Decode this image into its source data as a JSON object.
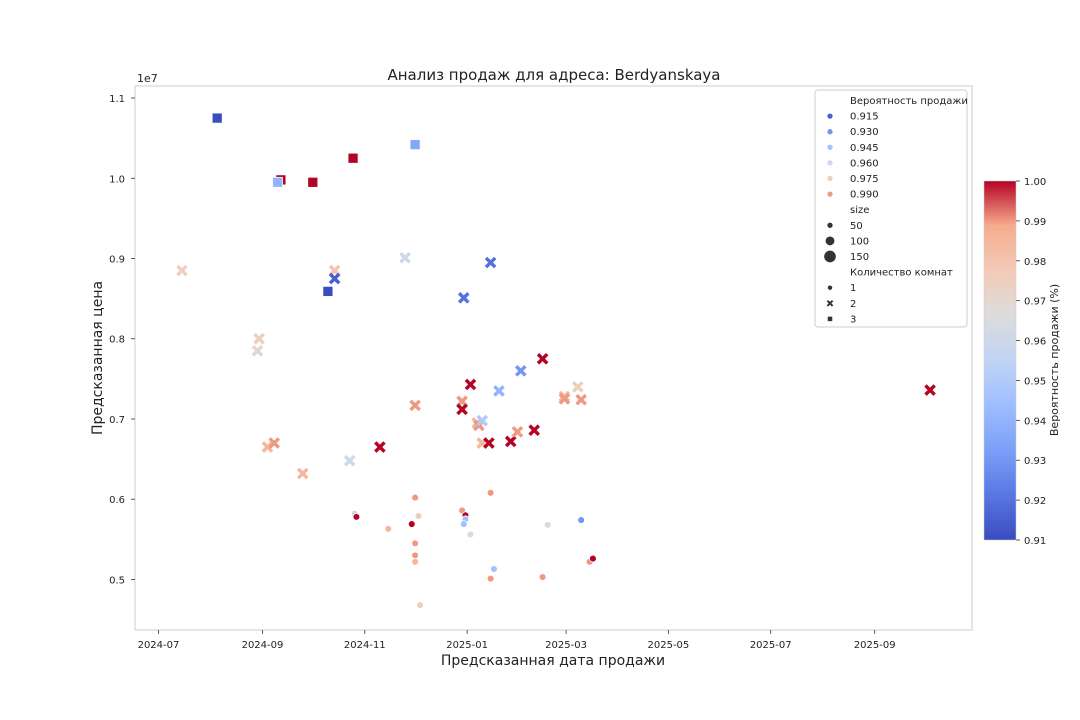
{
  "chart_data": {
    "type": "scatter",
    "title": "Анализ продаж для адреса: Berdyanskaya",
    "xlabel": "Предсказанная дата продажи",
    "ylabel": "Предсказанная цена",
    "y_offset_label": "1e7",
    "x_range": [
      "2024-06-17",
      "2025-10-29"
    ],
    "ylim": [
      4.37,
      11.15
    ],
    "x_ticks": [
      "2024-07",
      "2024-09",
      "2024-11",
      "2025-01",
      "2025-03",
      "2025-05",
      "2025-07",
      "2025-09"
    ],
    "y_ticks": [
      "0.5",
      "0.6",
      "0.7",
      "0.8",
      "0.9",
      "1.0",
      "1.1"
    ],
    "grid": false,
    "legend_position": "top-right",
    "legend": {
      "hue_title": "Вероятность продажи",
      "hue_entries": [
        "0.915",
        "0.930",
        "0.945",
        "0.960",
        "0.975",
        "0.990"
      ],
      "size_title": "size",
      "size_entries": [
        "50",
        "100",
        "150"
      ],
      "style_title": "Количество комнат",
      "style_entries": [
        "1",
        "2",
        "3"
      ]
    },
    "colorbar": {
      "label": "Вероятность продажи (%)",
      "min": 0.91,
      "max": 1.0,
      "ticks": [
        "0.91",
        "0.92",
        "0.93",
        "0.94",
        "0.95",
        "0.96",
        "0.97",
        "0.98",
        "0.99",
        "1.00"
      ]
    },
    "marker_legend": {
      "1": "circle",
      "2": "x",
      "3": "square"
    },
    "points": [
      {
        "date": "2024-08-05",
        "price": 10.75,
        "rooms": 3,
        "prob": 0.91
      },
      {
        "date": "2024-09-12",
        "price": 9.98,
        "rooms": 3,
        "prob": 1.0
      },
      {
        "date": "2024-09-10",
        "price": 9.95,
        "rooms": 3,
        "prob": 0.94
      },
      {
        "date": "2024-10-01",
        "price": 9.95,
        "rooms": 3,
        "prob": 1.0
      },
      {
        "date": "2024-10-25",
        "price": 10.25,
        "rooms": 3,
        "prob": 1.0
      },
      {
        "date": "2024-12-01",
        "price": 10.42,
        "rooms": 3,
        "prob": 0.935
      },
      {
        "date": "2024-10-10",
        "price": 8.59,
        "rooms": 3,
        "prob": 0.91
      },
      {
        "date": "2024-07-15",
        "price": 8.85,
        "rooms": 2,
        "prob": 0.975
      },
      {
        "date": "2024-10-14",
        "price": 8.85,
        "rooms": 2,
        "prob": 0.98
      },
      {
        "date": "2024-10-14",
        "price": 8.75,
        "rooms": 2,
        "prob": 0.915
      },
      {
        "date": "2024-11-25",
        "price": 9.01,
        "rooms": 2,
        "prob": 0.96
      },
      {
        "date": "2025-01-15",
        "price": 8.95,
        "rooms": 2,
        "prob": 0.92
      },
      {
        "date": "2024-12-30",
        "price": 8.51,
        "rooms": 2,
        "prob": 0.92
      },
      {
        "date": "2024-08-30",
        "price": 8.0,
        "rooms": 2,
        "prob": 0.975
      },
      {
        "date": "2024-08-29",
        "price": 7.85,
        "rooms": 2,
        "prob": 0.97
      },
      {
        "date": "2024-09-04",
        "price": 6.65,
        "rooms": 2,
        "prob": 0.985
      },
      {
        "date": "2024-09-08",
        "price": 6.7,
        "rooms": 2,
        "prob": 0.99
      },
      {
        "date": "2024-09-25",
        "price": 6.32,
        "rooms": 2,
        "prob": 0.985
      },
      {
        "date": "2024-10-23",
        "price": 6.48,
        "rooms": 2,
        "prob": 0.96
      },
      {
        "date": "2024-11-10",
        "price": 6.65,
        "rooms": 2,
        "prob": 1.0
      },
      {
        "date": "2024-12-01",
        "price": 7.17,
        "rooms": 2,
        "prob": 0.99
      },
      {
        "date": "2024-12-29",
        "price": 7.22,
        "rooms": 2,
        "prob": 0.99
      },
      {
        "date": "2024-12-29",
        "price": 7.12,
        "rooms": 2,
        "prob": 1.0
      },
      {
        "date": "2025-01-03",
        "price": 7.43,
        "rooms": 2,
        "prob": 1.0
      },
      {
        "date": "2025-01-07",
        "price": 6.95,
        "rooms": 2,
        "prob": 0.985
      },
      {
        "date": "2025-01-08",
        "price": 6.92,
        "rooms": 2,
        "prob": 0.99
      },
      {
        "date": "2025-01-10",
        "price": 6.98,
        "rooms": 2,
        "prob": 0.95
      },
      {
        "date": "2025-01-10",
        "price": 6.7,
        "rooms": 2,
        "prob": 0.985
      },
      {
        "date": "2025-01-14",
        "price": 6.7,
        "rooms": 2,
        "prob": 1.0
      },
      {
        "date": "2025-01-20",
        "price": 7.35,
        "rooms": 2,
        "prob": 0.94
      },
      {
        "date": "2025-01-27",
        "price": 6.72,
        "rooms": 2,
        "prob": 1.0
      },
      {
        "date": "2025-01-31",
        "price": 6.84,
        "rooms": 2,
        "prob": 0.99
      },
      {
        "date": "2025-02-02",
        "price": 7.6,
        "rooms": 2,
        "prob": 0.93
      },
      {
        "date": "2025-02-10",
        "price": 6.86,
        "rooms": 2,
        "prob": 1.0
      },
      {
        "date": "2025-02-15",
        "price": 7.75,
        "rooms": 2,
        "prob": 1.0
      },
      {
        "date": "2025-02-28",
        "price": 7.28,
        "rooms": 2,
        "prob": 0.985
      },
      {
        "date": "2025-02-28",
        "price": 7.25,
        "rooms": 2,
        "prob": 0.99
      },
      {
        "date": "2025-03-08",
        "price": 7.4,
        "rooms": 2,
        "prob": 0.975
      },
      {
        "date": "2025-03-10",
        "price": 7.24,
        "rooms": 2,
        "prob": 0.99
      },
      {
        "date": "2025-10-04",
        "price": 7.36,
        "rooms": 2,
        "prob": 1.0
      },
      {
        "date": "2024-10-26",
        "price": 5.82,
        "rooms": 1,
        "prob": 0.96
      },
      {
        "date": "2024-10-27",
        "price": 5.78,
        "rooms": 1,
        "prob": 1.0
      },
      {
        "date": "2024-11-15",
        "price": 5.63,
        "rooms": 1,
        "prob": 0.985
      },
      {
        "date": "2024-11-29",
        "price": 5.69,
        "rooms": 1,
        "prob": 1.0
      },
      {
        "date": "2024-12-01",
        "price": 6.02,
        "rooms": 1,
        "prob": 0.99
      },
      {
        "date": "2024-12-03",
        "price": 5.79,
        "rooms": 1,
        "prob": 0.975
      },
      {
        "date": "2024-12-01",
        "price": 5.45,
        "rooms": 1,
        "prob": 0.99
      },
      {
        "date": "2024-12-01",
        "price": 5.3,
        "rooms": 1,
        "prob": 0.99
      },
      {
        "date": "2024-12-01",
        "price": 5.22,
        "rooms": 1,
        "prob": 0.985
      },
      {
        "date": "2024-12-04",
        "price": 4.68,
        "rooms": 1,
        "prob": 0.975
      },
      {
        "date": "2024-12-29",
        "price": 5.86,
        "rooms": 1,
        "prob": 0.99
      },
      {
        "date": "2024-12-31",
        "price": 5.8,
        "rooms": 1,
        "prob": 1.0
      },
      {
        "date": "2024-12-31",
        "price": 5.75,
        "rooms": 1,
        "prob": 0.945
      },
      {
        "date": "2024-12-30",
        "price": 5.69,
        "rooms": 1,
        "prob": 0.945
      },
      {
        "date": "2025-01-03",
        "price": 5.56,
        "rooms": 1,
        "prob": 0.97
      },
      {
        "date": "2025-01-15",
        "price": 6.08,
        "rooms": 1,
        "prob": 0.99
      },
      {
        "date": "2025-01-17",
        "price": 5.13,
        "rooms": 1,
        "prob": 0.945
      },
      {
        "date": "2025-01-15",
        "price": 5.01,
        "rooms": 1,
        "prob": 0.99
      },
      {
        "date": "2025-02-15",
        "price": 5.03,
        "rooms": 1,
        "prob": 0.99
      },
      {
        "date": "2025-02-18",
        "price": 5.68,
        "rooms": 1,
        "prob": 0.965
      },
      {
        "date": "2025-03-10",
        "price": 5.74,
        "rooms": 1,
        "prob": 0.93
      },
      {
        "date": "2025-03-15",
        "price": 5.22,
        "rooms": 1,
        "prob": 0.99
      },
      {
        "date": "2025-03-17",
        "price": 5.26,
        "rooms": 1,
        "prob": 1.0
      }
    ]
  }
}
